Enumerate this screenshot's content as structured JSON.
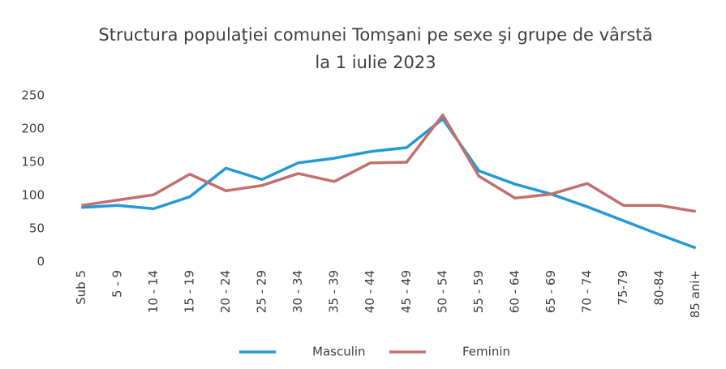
{
  "chart_data": {
    "type": "line",
    "title": "Structura populaţiei comunei Tomşani pe sexe şi grupe de vârstă la 1 iulie 2023",
    "categories": [
      "Sub 5",
      "5 - 9",
      "10 - 14",
      "15 - 19",
      "20 - 24",
      "25 - 29",
      "30 - 34",
      "35 - 39",
      "40 - 44",
      "45 - 49",
      "50 - 54",
      "55 - 59",
      "60 - 64",
      "65 - 69",
      "70 - 74",
      "75-79",
      "80-84",
      "85 ani+"
    ],
    "series": [
      {
        "name": "Masculin",
        "color": "#2499d6",
        "values": [
          82,
          85,
          80,
          98,
          141,
          124,
          149,
          156,
          166,
          172,
          215,
          137,
          117,
          102,
          83,
          62,
          41,
          21
        ]
      },
      {
        "name": "Feminin",
        "color": "#c2706d",
        "values": [
          85,
          93,
          101,
          132,
          107,
          115,
          133,
          121,
          149,
          150,
          221,
          129,
          96,
          102,
          118,
          85,
          85,
          76
        ]
      }
    ],
    "ylim": [
      0,
      250
    ],
    "yticks": [
      0,
      50,
      100,
      150,
      200,
      250
    ],
    "grid": false
  }
}
